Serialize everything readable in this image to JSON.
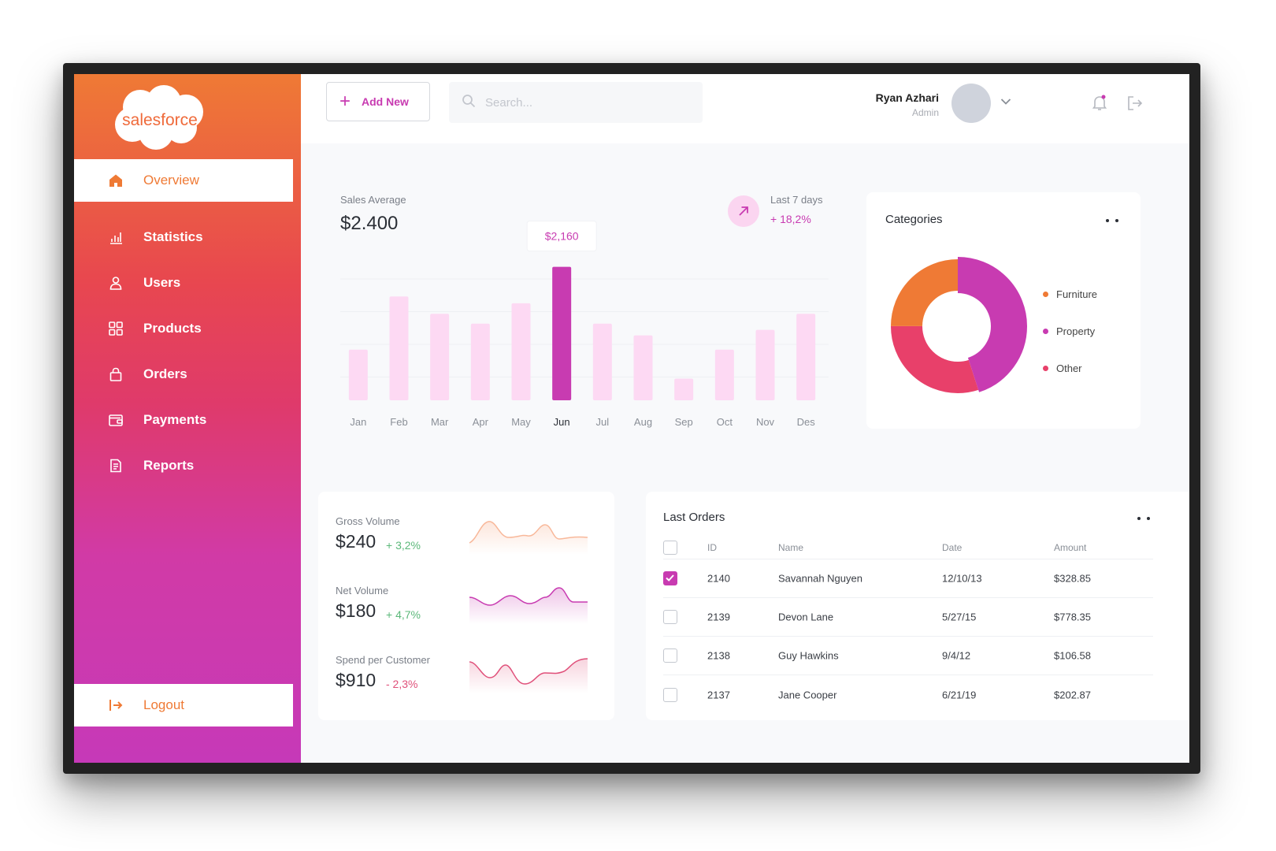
{
  "brand": {
    "name": "salesforce"
  },
  "sidebar": {
    "items": [
      {
        "label": "Overview",
        "icon": "home-icon"
      },
      {
        "label": "Statistics",
        "icon": "bar-chart-icon"
      },
      {
        "label": "Users",
        "icon": "user-icon"
      },
      {
        "label": "Products",
        "icon": "grid-icon"
      },
      {
        "label": "Orders",
        "icon": "bag-icon"
      },
      {
        "label": "Payments",
        "icon": "wallet-icon"
      },
      {
        "label": "Reports",
        "icon": "document-icon"
      }
    ],
    "logout_label": "Logout"
  },
  "topbar": {
    "add_label": "Add New",
    "search_placeholder": "Search...",
    "user_name": "Ryan Azhari",
    "user_role": "Admin"
  },
  "sales": {
    "label": "Sales Average",
    "value": "$2.400",
    "period_label": "Last 7 days",
    "period_change": "+ 18,2%"
  },
  "chart_data": {
    "type": "bar",
    "categories": [
      "Jan",
      "Feb",
      "Mar",
      "Apr",
      "May",
      "Jun",
      "Jul",
      "Aug",
      "Sep",
      "Oct",
      "Nov",
      "Des"
    ],
    "values": [
      820,
      1680,
      1400,
      1240,
      1570,
      2160,
      1240,
      1050,
      350,
      820,
      1140,
      1400
    ],
    "highlight_index": 5,
    "tooltip": "$2,160",
    "ylim": [
      0,
      2500
    ],
    "grid": true,
    "colors": {
      "bar": "#fdd9f3",
      "highlight": "#c83bb1"
    }
  },
  "categories": {
    "title": "Categories",
    "items": [
      {
        "label": "Furniture",
        "color": "#ef7a35",
        "share": 0.25
      },
      {
        "label": "Property",
        "color": "#c83bb1",
        "share": 0.45
      },
      {
        "label": "Other",
        "color": "#e8406a",
        "share": 0.3
      }
    ]
  },
  "volumes": [
    {
      "label": "Gross Volume",
      "value": "$240",
      "change": "+ 3,2%",
      "positive": true,
      "color": "#f8b89a"
    },
    {
      "label": "Net Volume",
      "value": "$180",
      "change": "+ 4,7%",
      "positive": true,
      "color": "#c83bb1"
    },
    {
      "label": "Spend per Customer",
      "value": "$910",
      "change": "- 2,3%",
      "positive": false,
      "color": "#e0507a"
    }
  ],
  "orders": {
    "title": "Last Orders",
    "columns": [
      "ID",
      "Name",
      "Date",
      "Amount"
    ],
    "rows": [
      {
        "id": "2140",
        "name": "Savannah Nguyen",
        "date": "12/10/13",
        "amount": "$328.85",
        "checked": true
      },
      {
        "id": "2139",
        "name": "Devon Lane",
        "date": "5/27/15",
        "amount": "$778.35",
        "checked": false
      },
      {
        "id": "2138",
        "name": "Guy Hawkins",
        "date": "9/4/12",
        "amount": "$106.58",
        "checked": false
      },
      {
        "id": "2137",
        "name": "Jane Cooper",
        "date": "6/21/19",
        "amount": "$202.87",
        "checked": false
      }
    ]
  }
}
